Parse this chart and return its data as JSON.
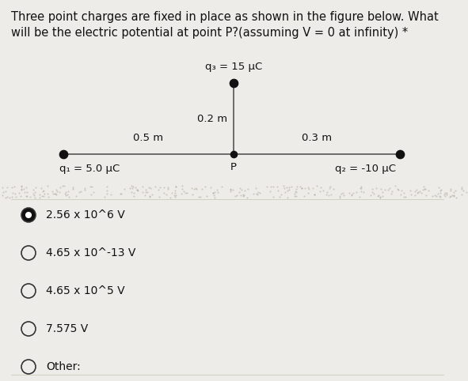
{
  "title_line1": "Three point charges are fixed in place as shown in the figure below. What",
  "title_line2": "will be the electric potential at point P?(assuming V = 0 at infinity) *",
  "background_color": "#eeece8",
  "q3_label": "q₃ = 15 μC",
  "q1_label": "q₁ = 5.0 μC",
  "q2_label": "q₂ = -10 μC",
  "dist_q3_p": "0.2 m",
  "dist_q1_p": "0.5 m",
  "dist_q2_p": "0.3 m",
  "P_label": "P",
  "options": [
    {
      "label": "2.56 x 10^6 V",
      "selected": true
    },
    {
      "label": "4.65 x 10^-13 V",
      "selected": false
    },
    {
      "label": "4.65 x 10^5 V",
      "selected": false
    },
    {
      "label": "7.575 V",
      "selected": false
    },
    {
      "label": "Other:",
      "selected": false
    }
  ],
  "dot_color": "#111111",
  "line_color": "#555555",
  "text_color": "#111111",
  "circle_edge_color": "#333333",
  "font_size_title": 10.5,
  "font_size_labels": 9.5,
  "font_size_options": 10,
  "separator_color": "#ccccbb",
  "noise_color": "#aaaaaa"
}
